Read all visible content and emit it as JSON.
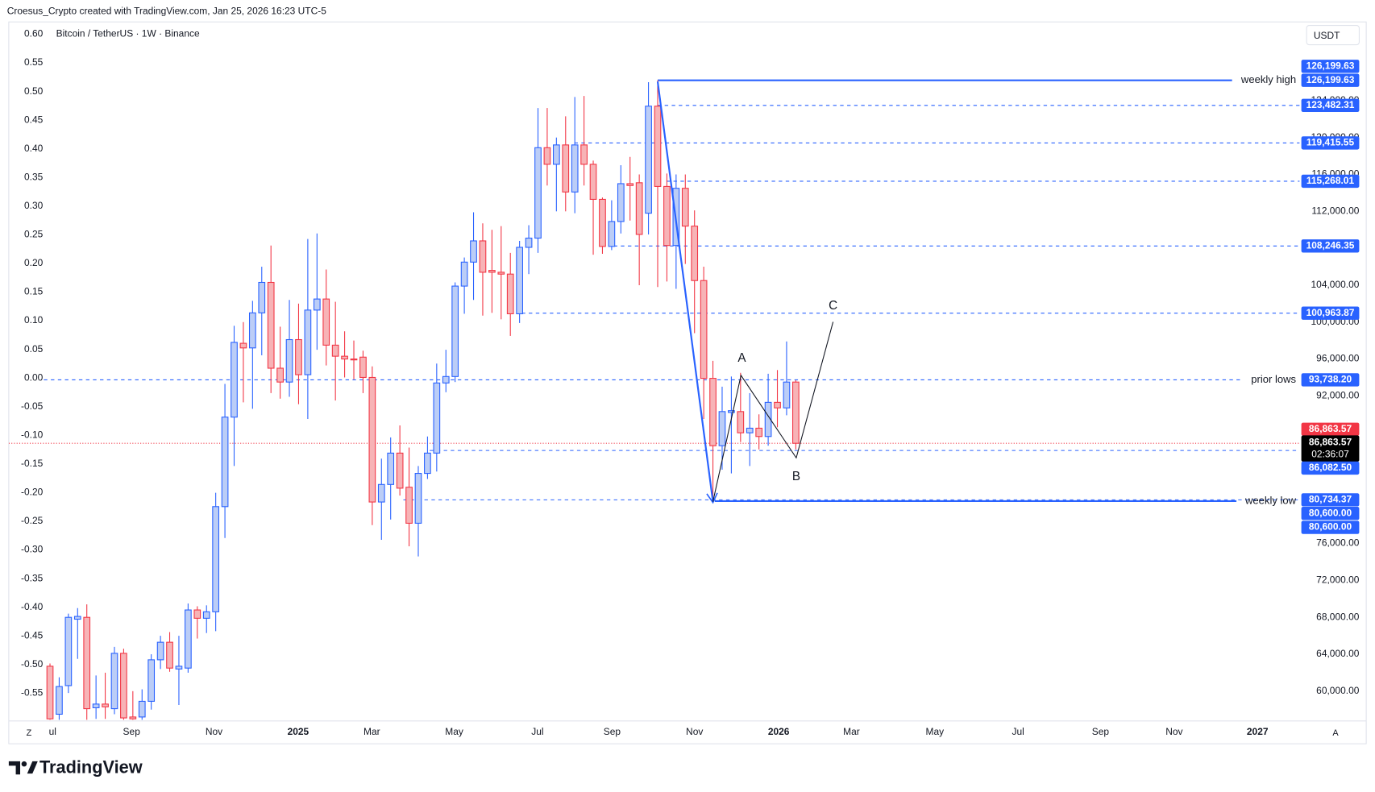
{
  "header": "Croesus_Crypto created with TradingView.com, Jan 25, 2026 16:23 UTC-5",
  "footer": "TradingView",
  "axis_buttons": [
    "Z",
    "A"
  ],
  "chart_data": {
    "type": "candlestick",
    "title": "Bitcoin / TetherUS · 1W · Binance",
    "currency": "USDT",
    "up_color": "#2962ff",
    "up_fill": "#bbcdf7",
    "down_color": "#f23645",
    "down_fill": "#f7b3b6",
    "open": [
      62700,
      57500,
      60600,
      67800,
      68000,
      58200,
      58600,
      58100,
      64100,
      57200,
      57200,
      58900,
      63400,
      65300,
      62400,
      62500,
      68800,
      67900,
      68600,
      80000,
      89700,
      97700,
      97200,
      101000,
      104300,
      95000,
      93500,
      98100,
      94300,
      101300,
      102500,
      97500,
      96300,
      96000,
      96200,
      94000,
      80500,
      82400,
      85800,
      82100,
      78200,
      83600,
      85800,
      93400,
      94100,
      103900,
      106500,
      108800,
      105600,
      105400,
      105200,
      100900,
      108100,
      109100,
      118900,
      117100,
      119200,
      114100,
      119200,
      117100,
      113300,
      108200,
      110900,
      115000,
      115100,
      111800,
      123400,
      114700,
      108300,
      114500,
      110400,
      104500,
      93900,
      86600,
      90200,
      90300,
      88000,
      88500,
      87600,
      91300,
      90700,
      93500
    ],
    "high": [
      63000,
      61500,
      68400,
      69000,
      69400,
      61700,
      62000,
      64800,
      64600,
      60000,
      60200,
      64000,
      66000,
      66400,
      66000,
      69500,
      69200,
      69300,
      81500,
      93300,
      99600,
      100000,
      102300,
      106000,
      108300,
      99500,
      102400,
      102000,
      109000,
      109600,
      105700,
      102200,
      99000,
      98000,
      96900,
      95200,
      85200,
      87500,
      88800,
      86400,
      84400,
      87600,
      95500,
      97000,
      104300,
      107000,
      111900,
      110700,
      110000,
      110400,
      107500,
      108800,
      110500,
      123200,
      123200,
      120000,
      122300,
      124400,
      124500,
      117500,
      113500,
      113200,
      117000,
      117900,
      116000,
      126000,
      126199.63,
      116100,
      116000,
      116000,
      112100,
      106000,
      95800,
      93000,
      94100,
      94500,
      92300,
      90000,
      94400,
      94800,
      97900,
      93700
    ],
    "low": [
      56900,
      56900,
      59800,
      63500,
      56900,
      57000,
      57000,
      57500,
      56900,
      56900,
      56900,
      58000,
      62400,
      62100,
      58500,
      62000,
      65700,
      66300,
      66500,
      76600,
      84400,
      91300,
      90600,
      96400,
      92300,
      91700,
      91900,
      91100,
      89500,
      97000,
      95300,
      91500,
      94000,
      93800,
      92300,
      78000,
      76400,
      78600,
      81200,
      75700,
      74600,
      83000,
      83800,
      92400,
      93500,
      100900,
      102400,
      100700,
      101000,
      100300,
      98500,
      99900,
      105200,
      107500,
      114800,
      112000,
      112000,
      111800,
      114800,
      107300,
      107400,
      107800,
      109600,
      111000,
      104000,
      109500,
      103800,
      104400,
      103600,
      106300,
      98800,
      89500,
      80600,
      84000,
      83600,
      87000,
      84400,
      86200,
      86600,
      88600,
      89900,
      86200
    ],
    "close": [
      57000,
      60500,
      68000,
      68100,
      58100,
      58600,
      58300,
      64100,
      57100,
      57000,
      58900,
      63400,
      65300,
      62500,
      62700,
      68800,
      67900,
      68600,
      80000,
      89700,
      97800,
      97200,
      101000,
      104300,
      95000,
      93500,
      98100,
      94300,
      101300,
      102500,
      97500,
      96300,
      96000,
      95900,
      94000,
      80500,
      82400,
      85800,
      82000,
      78200,
      83600,
      85800,
      93400,
      94100,
      103900,
      106500,
      108800,
      105400,
      105400,
      105200,
      100900,
      108100,
      109100,
      118900,
      117100,
      119200,
      114100,
      119200,
      117100,
      113300,
      108200,
      110900,
      115000,
      114800,
      109500,
      123400,
      114700,
      108300,
      114500,
      110400,
      104500,
      93900,
      86600,
      90300,
      90400,
      88000,
      88500,
      87600,
      91300,
      90700,
      93500,
      86863.57
    ],
    "xtick_labels": [
      "ul",
      "Sep",
      "Nov",
      "2025",
      "Mar",
      "May",
      "Jul",
      "Sep",
      "Nov",
      "2026",
      "Mar",
      "May",
      "Jul",
      "Sep",
      "Nov",
      "2027"
    ],
    "ylim": [
      56770,
      132530
    ],
    "yticks": [
      {
        "value": 60000,
        "label": "60,000.00"
      },
      {
        "value": 64000,
        "label": "64,000.00"
      },
      {
        "value": 68000,
        "label": "68,000.00"
      },
      {
        "value": 72000,
        "label": "72,000.00"
      },
      {
        "value": 76000,
        "label": "76,000.00"
      },
      {
        "value": 92000,
        "label": "92,000.00"
      },
      {
        "value": 96000,
        "label": "96,000.00"
      },
      {
        "value": 100000,
        "label": "100,000.00"
      },
      {
        "value": 104000,
        "label": "104,000.00"
      },
      {
        "value": 112000,
        "label": "112,000.00"
      },
      {
        "value": 116000,
        "label": "116,000.00"
      },
      {
        "value": 120000,
        "label": "120,000.00"
      },
      {
        "value": 124000,
        "label": "124,000.00"
      }
    ],
    "y2lim": [
      -0.5985,
      0.6215
    ],
    "y2ticks": [
      {
        "value": 0.6,
        "label": "0.60"
      },
      0.55,
      {
        "value": 0.5,
        "label": "0.50"
      },
      0.45,
      {
        "value": 0.4,
        "label": "0.40"
      },
      0.35,
      {
        "value": 0.3,
        "label": "0.30"
      },
      0.25,
      {
        "value": 0.2,
        "label": "0.20"
      },
      0.15,
      {
        "value": 0.1,
        "label": "0.10"
      },
      0.05,
      {
        "value": 0,
        "label": "0.00"
      },
      -0.05,
      {
        "value": -0.1,
        "label": "-0.10"
      },
      -0.15,
      {
        "value": -0.2,
        "label": "-0.20"
      },
      -0.25,
      {
        "value": -0.3,
        "label": "-0.30"
      },
      -0.35,
      {
        "value": -0.4,
        "label": "-0.40"
      },
      -0.45,
      {
        "value": -0.5,
        "label": "-0.50"
      },
      -0.55
    ],
    "levels": [
      {
        "value": 126199.63,
        "label": "weekly high",
        "style": "solid"
      },
      {
        "value": 123482.31,
        "style": "dashed"
      },
      {
        "value": 119415.55,
        "style": "dashed"
      },
      {
        "value": 115268.01,
        "style": "dashed"
      },
      {
        "value": 108246.35,
        "style": "dashed"
      },
      {
        "value": 100963.87,
        "style": "dashed"
      },
      {
        "value": 93738.2,
        "label": "prior lows",
        "style": "dashed"
      },
      {
        "value": 86082.5,
        "style": "dashed"
      },
      {
        "value": 80734.37,
        "style": "dashed"
      },
      {
        "value": 80600,
        "label": "weekly low",
        "style": "solid"
      }
    ],
    "price_labels": [
      {
        "value": 126199.63,
        "label": "126,199.63",
        "color": "#2962ff"
      },
      {
        "value": 126199.63,
        "label": "126,199.63",
        "color": "#2962ff"
      },
      {
        "value": 123482.31,
        "label": "123,482.31",
        "color": "#2962ff"
      },
      {
        "value": 119415.55,
        "label": "119,415.55",
        "color": "#2962ff"
      },
      {
        "value": 115268.01,
        "label": "115,268.01",
        "color": "#2962ff"
      },
      {
        "value": 108246.35,
        "label": "108,246.35",
        "color": "#2962ff"
      },
      {
        "value": 100963.87,
        "label": "100,963.87",
        "color": "#2962ff"
      },
      {
        "value": 93738.2,
        "label": "93,738.20",
        "color": "#2962ff"
      },
      {
        "value": 86863.57,
        "label": "86,863.57",
        "color": "#f23645"
      },
      {
        "value": 86863.57,
        "label": "86,863.57",
        "color": "#000000",
        "countdown": "02:36:07"
      },
      {
        "value": 86082.5,
        "label": "86,082.50",
        "color": "#2962ff"
      },
      {
        "value": 80734.37,
        "label": "80,734.37",
        "color": "#2962ff"
      },
      {
        "value": 80600,
        "label": "80,600.00",
        "color": "#2962ff"
      },
      {
        "value": 80600,
        "label": "80,600.00",
        "color": "#2962ff"
      }
    ],
    "annotations": [
      "A",
      "B",
      "C"
    ]
  }
}
